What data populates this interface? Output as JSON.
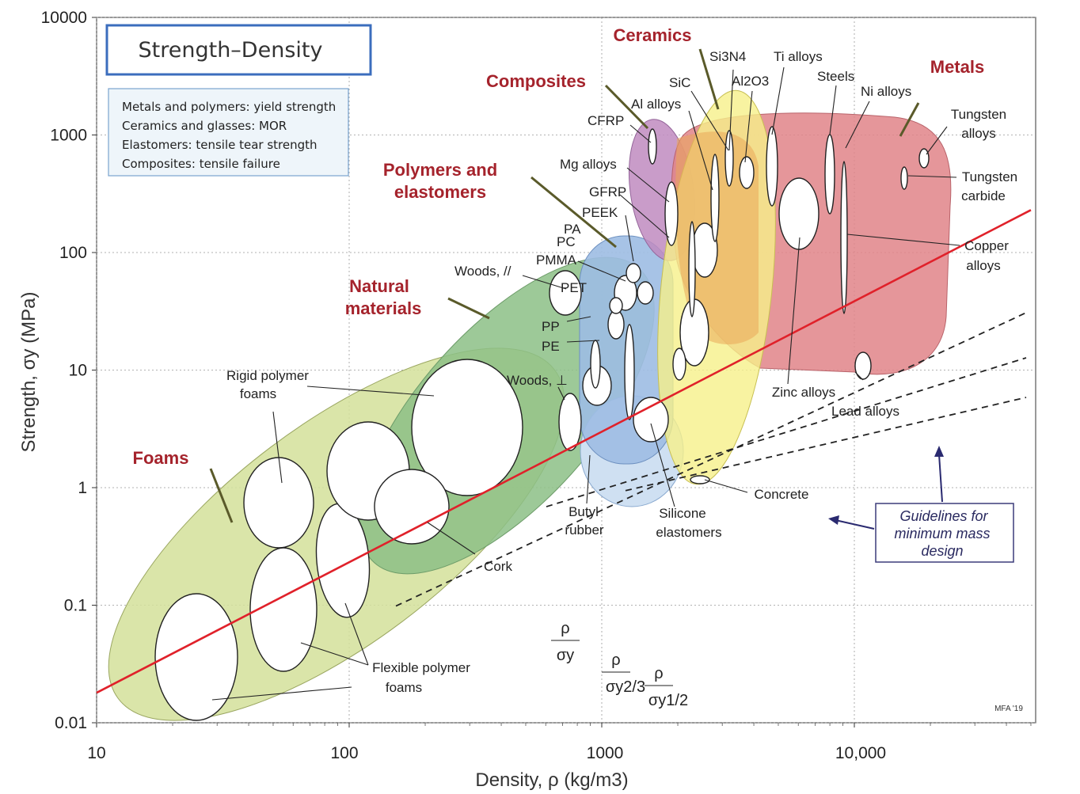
{
  "chart_data": {
    "type": "scatter",
    "title": "Strength–Density",
    "xlabel": "Density, ρ (kg/m3)",
    "ylabel": "Strength, σy (MPa)",
    "xscale": "log",
    "yscale": "log",
    "xlim": [
      10,
      50000
    ],
    "ylim": [
      0.01,
      10000
    ],
    "grid": true,
    "x_ticks": [
      {
        "value": 10,
        "label": "10"
      },
      {
        "value": 100,
        "label": "100"
      },
      {
        "value": 1000,
        "label": "1000"
      },
      {
        "value": 10000,
        "label": "10,000"
      }
    ],
    "y_ticks": [
      {
        "value": 0.01,
        "label": "0.01"
      },
      {
        "value": 0.1,
        "label": "0.1"
      },
      {
        "value": 1,
        "label": "1"
      },
      {
        "value": 10,
        "label": "10"
      },
      {
        "value": 100,
        "label": "100"
      },
      {
        "value": 1000,
        "label": "1000"
      },
      {
        "value": 10000,
        "label": "10000"
      }
    ],
    "notes": [
      "Metals and polymers: yield strength",
      "Ceramics and glasses: MOR",
      "Elastomers: tensile tear strength",
      "Composites: tensile failure"
    ],
    "families": [
      {
        "name": "Foams",
        "color": "#d4e19a",
        "density": [
          13,
          290
        ],
        "strength": [
          0.012,
          12
        ]
      },
      {
        "name": "Natural materials",
        "color": "#8cbf86",
        "density": [
          115,
          1550
        ],
        "strength": [
          0.35,
          170
        ]
      },
      {
        "name": "Polymers and elastomers",
        "color": "#9dbde3",
        "density": [
          880,
          2100
        ],
        "strength": [
          0.5,
          170
        ]
      },
      {
        "name": "Composites",
        "color": "#c08bc0",
        "density": [
          1500,
          2000
        ],
        "strength": [
          100,
          1400
        ]
      },
      {
        "name": "Ceramics",
        "color": "#f6f08a",
        "density": [
          1700,
          4100
        ],
        "strength": [
          0.8,
          3000
        ]
      },
      {
        "name": "Metals",
        "color": "#e08488",
        "density": [
          1700,
          22000
        ],
        "strength": [
          7,
          1700
        ]
      }
    ],
    "materials": [
      {
        "label": "Rigid polymer foams",
        "density": 120,
        "strength": 1.3
      },
      {
        "label": "Flexible polymer foams",
        "density": 40,
        "strength": 0.03
      },
      {
        "label": "Cork",
        "density": 170,
        "strength": 0.7
      },
      {
        "label": "Woods, //",
        "density": 700,
        "strength": 50
      },
      {
        "label": "Woods, ⊥",
        "density": 720,
        "strength": 3.5
      },
      {
        "label": "PA",
        "density": 1140,
        "strength": 70
      },
      {
        "label": "PC",
        "density": 1200,
        "strength": 60
      },
      {
        "label": "PMMA",
        "density": 1190,
        "strength": 65
      },
      {
        "label": "PET",
        "density": 1300,
        "strength": 55
      },
      {
        "label": "PEEK",
        "density": 1300,
        "strength": 100
      },
      {
        "label": "PP",
        "density": 900,
        "strength": 28
      },
      {
        "label": "PE",
        "density": 950,
        "strength": 20
      },
      {
        "label": "Butyl rubber",
        "density": 900,
        "strength": 3
      },
      {
        "label": "Silicone elastomers",
        "density": 1300,
        "strength": 3
      },
      {
        "label": "CFRP",
        "density": 1600,
        "strength": 800
      },
      {
        "label": "GFRP",
        "density": 1900,
        "strength": 300
      },
      {
        "label": "Mg alloys",
        "density": 1800,
        "strength": 250
      },
      {
        "label": "Al alloys",
        "density": 2700,
        "strength": 300
      },
      {
        "label": "SiC",
        "density": 3200,
        "strength": 700
      },
      {
        "label": "Si3N4",
        "density": 3200,
        "strength": 800
      },
      {
        "label": "Al2O3",
        "density": 3900,
        "strength": 500
      },
      {
        "label": "Ti alloys",
        "density": 4500,
        "strength": 800
      },
      {
        "label": "Steels",
        "density": 7800,
        "strength": 900
      },
      {
        "label": "Ni alloys",
        "density": 8900,
        "strength": 900
      },
      {
        "label": "Tungsten alloys",
        "density": 18000,
        "strength": 600
      },
      {
        "label": "Tungsten carbide",
        "density": 15500,
        "strength": 350
      },
      {
        "label": "Copper alloys",
        "density": 8900,
        "strength": 200
      },
      {
        "label": "Zinc alloys",
        "density": 6500,
        "strength": 200
      },
      {
        "label": "Lead alloys",
        "density": 11300,
        "strength": 12
      },
      {
        "label": "Concrete",
        "density": 2400,
        "strength": 1.2
      }
    ],
    "guidelines": [
      {
        "label_num": "ρ",
        "label_den": "σy",
        "slope": 1
      },
      {
        "label_num": "ρ",
        "label_den": "σy2/3",
        "slope": 1.5
      },
      {
        "label_num": "ρ",
        "label_den": "σy1/2",
        "slope": 2
      }
    ],
    "guideline_box": "Guidelines for minimum mass design",
    "red_line": {
      "color": "#e0212a",
      "points": [
        [
          10,
          0.018
        ],
        [
          50000,
          230
        ]
      ]
    },
    "credit": "MFA '19"
  },
  "text": {
    "title": "Strength–Density",
    "xlabel": "Density, ρ  (kg/m3)",
    "ylabel": "Strength, σy (MPa)",
    "guide1": "Guidelines for",
    "guide2": "minimum mass",
    "guide3": "design"
  }
}
